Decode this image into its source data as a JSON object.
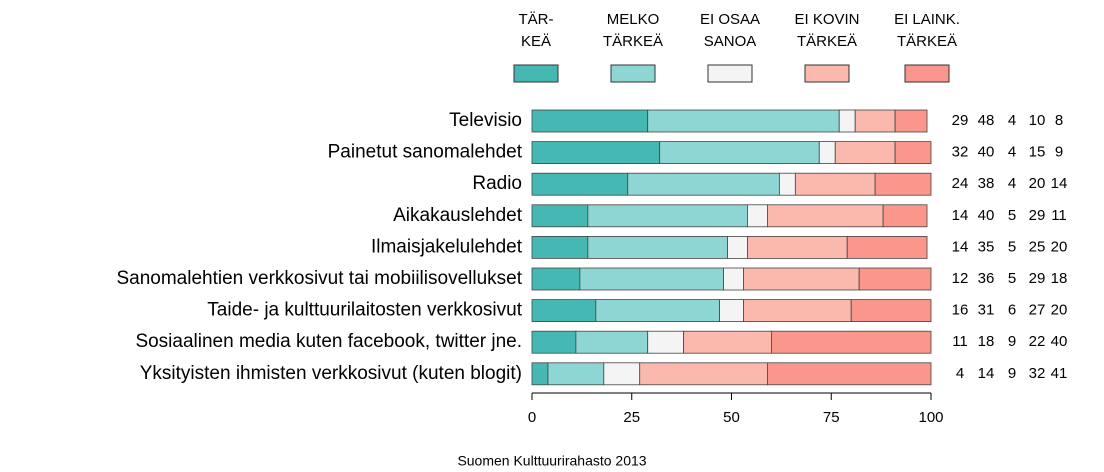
{
  "chart_data": {
    "type": "stacked-bar-horizontal",
    "categories": [
      "Televisio",
      "Painetut sanomalehdet",
      "Radio",
      "Aikakauslehdet",
      "Ilmaisjakelulehdet",
      "Sanomalehtien verkkosivut tai mobiilisovellukset",
      "Taide- ja kulttuurilaitosten verkkosivut",
      "Sosiaalinen media kuten facebook, twitter jne.",
      "Yksityisten ihmisten verkkosivut (kuten blogit)"
    ],
    "series": [
      {
        "name": "TÄR-\nKEÄ",
        "color": "#45b8b4",
        "values": [
          29,
          32,
          24,
          14,
          14,
          12,
          16,
          11,
          4
        ]
      },
      {
        "name": "MELKO\nTÄRKEÄ",
        "color": "#8dd6d3",
        "values": [
          48,
          40,
          38,
          40,
          35,
          36,
          31,
          18,
          14
        ]
      },
      {
        "name": "EI OSAA\nSANOA",
        "color": "#f4f4f4",
        "values": [
          4,
          4,
          4,
          5,
          5,
          5,
          6,
          9,
          9
        ]
      },
      {
        "name": "EI KOVIN\nTÄRKEÄ",
        "color": "#fbb8ac",
        "values": [
          10,
          15,
          20,
          29,
          25,
          29,
          27,
          22,
          32
        ]
      },
      {
        "name": "EI LAINK.\nTÄRKEÄ",
        "color": "#fa968c",
        "values": [
          8,
          9,
          14,
          11,
          20,
          18,
          20,
          40,
          41
        ]
      }
    ],
    "xlim": [
      0,
      100
    ],
    "xticks": [
      0,
      25,
      50,
      75,
      100
    ],
    "source": "Suomen Kulttuurirahasto 2013"
  }
}
